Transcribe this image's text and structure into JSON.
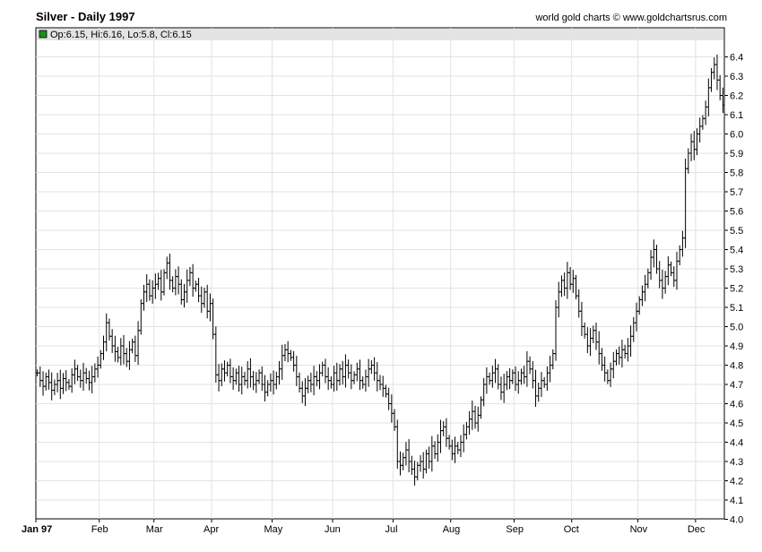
{
  "header": {
    "title": "Silver - Daily 1997",
    "credit": "world gold charts © www.goldchartsrus.com"
  },
  "legend": {
    "text": "Op:6.15, Hi:6.16, Lo:5.8, Cl:6.15",
    "swatch_color": "#1a8f1a"
  },
  "colors": {
    "bar": "#000000",
    "grid": "#e2e2e2",
    "axis": "#000000"
  },
  "chart_data": {
    "type": "ohlc",
    "series_name": "Silver",
    "y_ticks": [
      "6.4",
      "6.3",
      "6.2",
      "6.1",
      "6.0",
      "5.9",
      "5.8",
      "5.7",
      "5.6",
      "5.5",
      "5.4",
      "5.3",
      "5.2",
      "5.1",
      "5.0",
      "4.9",
      "4.8",
      "4.7",
      "4.6",
      "4.5",
      "4.4",
      "4.3",
      "4.2",
      "4.1",
      "4.0"
    ],
    "ylim": [
      4.0,
      6.45
    ],
    "x_month_labels": [
      "Jan 97",
      "Feb",
      "Mar",
      "Apr",
      "May",
      "Jun",
      "Jul",
      "Aug",
      "Sep",
      "Oct",
      "Nov",
      "Dec"
    ],
    "x_month_start_day_index": [
      0,
      22,
      41,
      61,
      82,
      103,
      124,
      144,
      166,
      186,
      209,
      229
    ],
    "grid": true,
    "legend_position": "top-left",
    "closes": [
      4.76,
      4.72,
      4.69,
      4.74,
      4.71,
      4.67,
      4.7,
      4.72,
      4.68,
      4.73,
      4.71,
      4.69,
      4.75,
      4.78,
      4.74,
      4.72,
      4.76,
      4.73,
      4.71,
      4.74,
      4.78,
      4.8,
      4.86,
      4.92,
      5.02,
      4.95,
      4.9,
      4.87,
      4.84,
      4.9,
      4.86,
      4.82,
      4.88,
      4.92,
      4.85,
      4.98,
      5.12,
      5.18,
      5.22,
      5.16,
      5.2,
      5.22,
      5.25,
      5.18,
      5.28,
      5.33,
      5.24,
      5.2,
      5.26,
      5.22,
      5.14,
      5.18,
      5.24,
      5.28,
      5.2,
      5.22,
      5.16,
      5.12,
      5.18,
      5.08,
      5.12,
      4.96,
      4.75,
      4.72,
      4.78,
      4.76,
      4.8,
      4.74,
      4.72,
      4.76,
      4.7,
      4.74,
      4.72,
      4.78,
      4.74,
      4.7,
      4.72,
      4.76,
      4.7,
      4.66,
      4.7,
      4.72,
      4.7,
      4.74,
      4.78,
      4.85,
      4.88,
      4.86,
      4.84,
      4.8,
      4.74,
      4.68,
      4.64,
      4.68,
      4.72,
      4.7,
      4.74,
      4.72,
      4.76,
      4.8,
      4.74,
      4.72,
      4.7,
      4.76,
      4.72,
      4.78,
      4.74,
      4.8,
      4.76,
      4.72,
      4.75,
      4.78,
      4.72,
      4.7,
      4.74,
      4.78,
      4.8,
      4.76,
      4.72,
      4.7,
      4.68,
      4.65,
      4.6,
      4.55,
      4.48,
      4.3,
      4.28,
      4.32,
      4.36,
      4.3,
      4.26,
      4.22,
      4.28,
      4.3,
      4.26,
      4.34,
      4.3,
      4.38,
      4.34,
      4.4,
      4.46,
      4.48,
      4.42,
      4.38,
      4.34,
      4.38,
      4.36,
      4.4,
      4.44,
      4.48,
      4.52,
      4.56,
      4.5,
      4.54,
      4.62,
      4.7,
      4.74,
      4.72,
      4.76,
      4.78,
      4.7,
      4.66,
      4.7,
      4.74,
      4.72,
      4.76,
      4.7,
      4.72,
      4.76,
      4.74,
      4.82,
      4.78,
      4.72,
      4.64,
      4.68,
      4.72,
      4.7,
      4.76,
      4.8,
      4.86,
      5.1,
      5.18,
      5.24,
      5.2,
      5.28,
      5.22,
      5.25,
      5.16,
      5.08,
      5.0,
      4.96,
      4.9,
      4.94,
      4.98,
      4.92,
      4.86,
      4.8,
      4.76,
      4.72,
      4.78,
      4.82,
      4.86,
      4.84,
      4.88,
      4.86,
      4.9,
      4.95,
      5.02,
      5.08,
      5.14,
      5.18,
      5.22,
      5.28,
      5.36,
      5.4,
      5.3,
      5.24,
      5.2,
      5.26,
      5.32,
      5.28,
      5.24,
      5.34,
      5.4,
      5.46,
      5.82,
      5.9,
      5.96,
      5.92,
      6.0,
      6.04,
      6.08,
      6.14,
      6.24,
      6.32,
      6.36,
      6.28,
      6.2,
      6.15
    ]
  }
}
